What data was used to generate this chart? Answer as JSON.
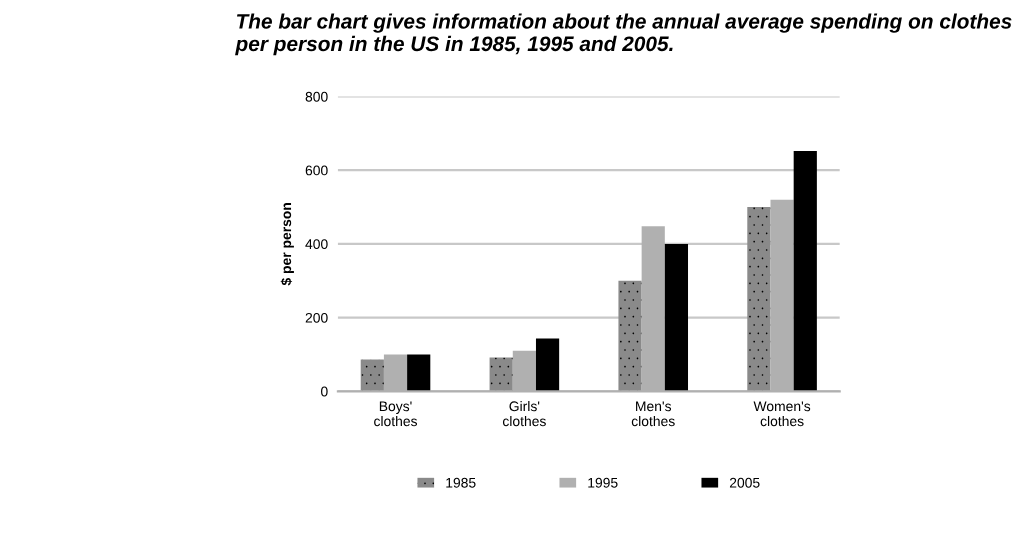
{
  "chart_data": {
    "type": "bar",
    "title": "The bar chart gives information about the annual average spending on clothes per person in the US in 1985, 1995 and 2005.",
    "ylabel": "$ per person",
    "categories": [
      "Boys'\nclothes",
      "Girls'\nclothes",
      "Men's\nclothes",
      "Women's\nclothes"
    ],
    "series": [
      {
        "name": "1985",
        "color": "#8a8a8a",
        "values": [
          86,
          92,
          300,
          500
        ]
      },
      {
        "name": "1995",
        "color": "#b0b0b0",
        "values": [
          100,
          110,
          448,
          520
        ]
      },
      {
        "name": "2005",
        "color": "#000000",
        "values": [
          100,
          143,
          400,
          652
        ]
      }
    ],
    "ylim": [
      0,
      800
    ],
    "yticks": [
      0,
      200,
      400,
      600,
      800
    ],
    "grid": "y",
    "legend": "bottom"
  }
}
